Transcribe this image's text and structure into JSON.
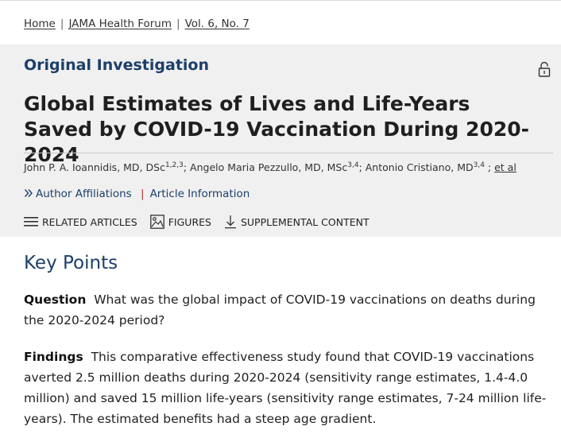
{
  "breadcrumb": {
    "home": "Home",
    "journal": "JAMA Health Forum",
    "issue": "Vol. 6, No. 7",
    "separator": "|"
  },
  "article": {
    "type_label": "Original Investigation",
    "title": "Global Estimates of Lives and Life-Years Saved by COVID-19 Vaccination During 2020-2024",
    "authors": [
      {
        "name": "John P. A. Ioannidis, MD, DSc",
        "sup": "1,2,3",
        "sep": "; "
      },
      {
        "name": "Angelo Maria Pezzullo, MD, MSc",
        "sup": "3,4",
        "sep": "; "
      },
      {
        "name": "Antonio Cristiano, MD",
        "sup": "3,4",
        "sep": " ; "
      }
    ],
    "et_al": "et al",
    "lock_icon": "open-lock-icon"
  },
  "links": {
    "author_affiliations": "Author Affiliations",
    "article_information": "Article Information",
    "separator": "|"
  },
  "toolbar": {
    "related": "RELATED ARTICLES",
    "figures": "FIGURES",
    "supplemental": "SUPPLEMENTAL CONTENT"
  },
  "key_points": {
    "heading": "Key Points",
    "question_label": "Question",
    "question_text": "What was the global impact of COVID-19 vaccinations on deaths during the 2020-2024 period?",
    "findings_label": "Findings",
    "findings_text": "This comparative effectiveness study found that COVID-19 vaccinations averted 2.5 million deaths during 2020-2024 (sensitivity range estimates, 1.4-4.0 million) and saved 15 million life-years (sensitivity range estimates, 7-24 million life-years). The estimated benefits had a steep age gradient."
  },
  "colors": {
    "accent_navy": "#1c3f6a",
    "separator_red": "#b0302a",
    "header_bg": "#f0f0f0"
  }
}
